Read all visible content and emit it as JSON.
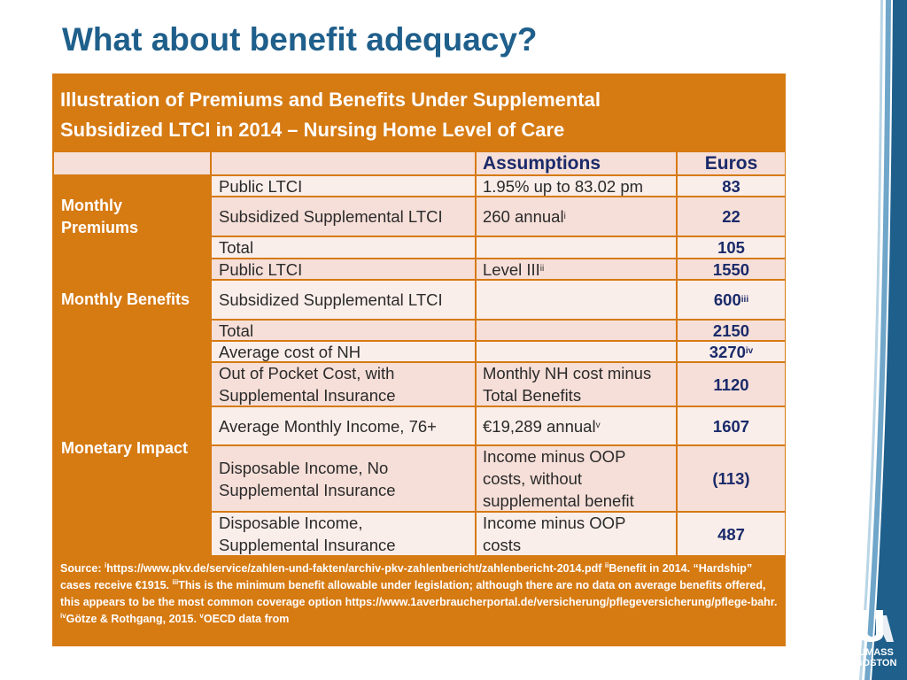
{
  "slide": {
    "title": "What about benefit adequacy?",
    "caption_line1": "Illustration of Premiums and Benefits Under Supplemental",
    "caption_line2": "Subsidized LTCI in 2014 – Nursing Home Level of Care"
  },
  "table": {
    "headers": {
      "assumptions": "Assumptions",
      "euros": "Euros"
    },
    "groups": {
      "premiums_line1": "Monthly",
      "premiums_line2": "Premiums",
      "benefits": "Monthly Benefits",
      "impact": "Monetary Impact"
    },
    "rows": [
      {
        "label": "Public LTCI",
        "assumption": "1.95% up to 83.02 pm",
        "euros": "83"
      },
      {
        "label": "Subsidized Supplemental LTCI",
        "assumption": "260 annual",
        "assumption_sup": "i",
        "euros": "22"
      },
      {
        "label": "Total",
        "assumption": "",
        "euros": "105"
      },
      {
        "label": "Public LTCI",
        "assumption": "Level III",
        "assumption_sup": "ii",
        "euros": "1550"
      },
      {
        "label": "Subsidized Supplemental LTCI",
        "assumption": "",
        "euros": "600",
        "euros_sup": "iii"
      },
      {
        "label": "Total",
        "assumption": "",
        "euros": "2150"
      },
      {
        "label": "Average cost of NH",
        "assumption": "",
        "euros": "3270",
        "euros_sup": "iv"
      },
      {
        "label_l1": "Out of Pocket Cost, with",
        "label_l2": "Supplemental Insurance",
        "assumption_l1": "Monthly NH cost minus",
        "assumption_l2": "Total Benefits",
        "euros": "1120"
      },
      {
        "label": "Average Monthly Income, 76+",
        "assumption": "€19,289 annual",
        "assumption_sup": "v",
        "euros": "1607"
      },
      {
        "label_l1": "Disposable Income, No",
        "label_l2": "Supplemental Insurance",
        "assumption_l1": "Income minus OOP",
        "assumption_l2": "costs, without",
        "assumption_l3": "supplemental benefit",
        "euros": "(113)"
      },
      {
        "label_l1": "Disposable Income,",
        "label_l2": "Supplemental Insurance",
        "assumption_l1": "Income minus OOP",
        "assumption_l2": "costs",
        "euros": "487"
      }
    ]
  },
  "source": {
    "prefix": "Source: ",
    "sup1": "i",
    "text1": "https://www.pkv.de/service/zahlen-und-fakten/archiv-pkv-zahlenbericht/zahlenbericht-2014.pdf ",
    "sup2": "ii",
    "text2": "Benefit in 2014. “Hardship” cases receive €1915. ",
    "sup3": "iii",
    "text3": "This is the minimum benefit allowable under legislation; although there are no data on average benefits offered, this appears to be the most common coverage option https://www.1averbraucherportal.de/versicherung/pflegeversicherung/pflege-bahr. ",
    "sup4": "iv",
    "text4": "Götze & Rothgang, 2015. ",
    "sup5": "v",
    "text5": "OECD data from"
  },
  "logo": {
    "line1": "UMASS",
    "line2": "BOSTON"
  },
  "colors": {
    "title": "#1f5f8b",
    "orange": "#d67a12",
    "navy": "#1a2a6a",
    "blue": "#1e5f8c"
  }
}
